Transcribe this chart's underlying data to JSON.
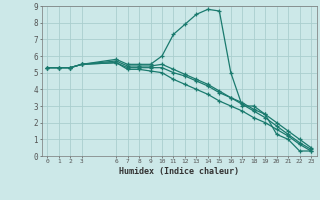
{
  "title": "",
  "xlabel": "Humidex (Indice chaleur)",
  "background_color": "#cce8e8",
  "grid_color": "#aacece",
  "line_color": "#1a7a6e",
  "xlim": [
    -0.5,
    23.5
  ],
  "ylim": [
    0,
    9
  ],
  "xticks": [
    0,
    1,
    2,
    3,
    6,
    7,
    8,
    9,
    10,
    11,
    12,
    13,
    14,
    15,
    16,
    17,
    18,
    19,
    20,
    21,
    22,
    23
  ],
  "yticks": [
    0,
    1,
    2,
    3,
    4,
    5,
    6,
    7,
    8,
    9
  ],
  "series": [
    {
      "x": [
        0,
        1,
        2,
        3,
        6,
        7,
        8,
        9,
        10,
        11,
        12,
        13,
        14,
        15,
        16,
        17,
        18,
        19,
        20,
        21,
        22,
        23
      ],
      "y": [
        5.3,
        5.3,
        5.3,
        5.5,
        5.8,
        5.5,
        5.5,
        5.5,
        6.0,
        7.3,
        7.9,
        8.5,
        8.8,
        8.7,
        5.0,
        3.0,
        3.0,
        2.5,
        1.3,
        1.0,
        0.3,
        0.3
      ]
    },
    {
      "x": [
        0,
        1,
        2,
        3,
        6,
        7,
        8,
        9,
        10,
        11,
        12,
        13,
        14,
        15,
        16,
        17,
        18,
        19,
        20,
        21,
        22,
        23
      ],
      "y": [
        5.3,
        5.3,
        5.3,
        5.5,
        5.6,
        5.3,
        5.3,
        5.3,
        5.3,
        5.0,
        4.8,
        4.5,
        4.2,
        3.8,
        3.5,
        3.2,
        2.8,
        2.5,
        2.0,
        1.5,
        1.0,
        0.5
      ]
    },
    {
      "x": [
        0,
        1,
        2,
        3,
        6,
        7,
        8,
        9,
        10,
        11,
        12,
        13,
        14,
        15,
        16,
        17,
        18,
        19,
        20,
        21,
        22,
        23
      ],
      "y": [
        5.3,
        5.3,
        5.3,
        5.5,
        5.6,
        5.2,
        5.2,
        5.1,
        5.0,
        4.6,
        4.3,
        4.0,
        3.7,
        3.3,
        3.0,
        2.7,
        2.3,
        2.0,
        1.6,
        1.2,
        0.7,
        0.3
      ]
    },
    {
      "x": [
        0,
        1,
        2,
        3,
        6,
        7,
        8,
        9,
        10,
        11,
        12,
        13,
        14,
        15,
        16,
        17,
        18,
        19,
        20,
        21,
        22,
        23
      ],
      "y": [
        5.3,
        5.3,
        5.3,
        5.5,
        5.7,
        5.4,
        5.4,
        5.4,
        5.5,
        5.2,
        4.9,
        4.6,
        4.3,
        3.9,
        3.5,
        3.1,
        2.7,
        2.3,
        1.8,
        1.3,
        0.8,
        0.4
      ]
    }
  ]
}
